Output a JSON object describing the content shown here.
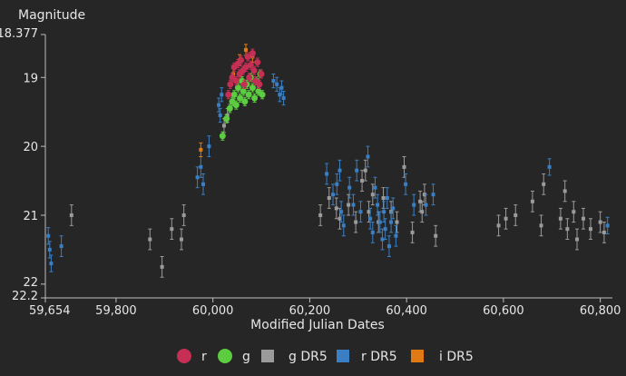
{
  "chart_data": {
    "type": "scatter",
    "title": "",
    "xlabel": "Modified Julian Dates",
    "ylabel": "Magnitude",
    "xlim": [
      59654,
      60825
    ],
    "ylim": [
      18.377,
      22.2
    ],
    "y_reversed": true,
    "grid": false,
    "legend_position": "bottom-center",
    "x_ticks": [
      59654,
      59800,
      60000,
      60200,
      60400,
      60600,
      60800
    ],
    "x_tick_labels": [
      "59,654",
      "59,800",
      "60,000",
      "60,200",
      "60,400",
      "60,600",
      "60,800"
    ],
    "y_ticks": [
      18.377,
      19,
      20,
      21,
      22,
      22.2
    ],
    "y_tick_labels": [
      "18.377",
      "19",
      "20",
      "21",
      "22",
      "22.2"
    ],
    "series": [
      {
        "name": "r",
        "marker": "circle",
        "color": "#c62f54",
        "points": [
          [
            60032,
            19.25,
            0.06
          ],
          [
            60036,
            19.1,
            0.06
          ],
          [
            60040,
            19.0,
            0.06
          ],
          [
            60044,
            18.85,
            0.06
          ],
          [
            60048,
            19.05,
            0.06
          ],
          [
            60052,
            18.8,
            0.06
          ],
          [
            60055,
            18.95,
            0.06
          ],
          [
            60058,
            18.75,
            0.06
          ],
          [
            60062,
            18.9,
            0.06
          ],
          [
            60065,
            19.1,
            0.06
          ],
          [
            60068,
            18.85,
            0.06
          ],
          [
            60072,
            18.7,
            0.06
          ],
          [
            60075,
            19.0,
            0.06
          ],
          [
            60078,
            18.82,
            0.06
          ],
          [
            60082,
            18.65,
            0.06
          ],
          [
            60085,
            18.9,
            0.06
          ],
          [
            60088,
            19.05,
            0.06
          ],
          [
            60092,
            18.78,
            0.06
          ],
          [
            60096,
            19.1,
            0.06
          ],
          [
            60100,
            18.95,
            0.06
          ]
        ]
      },
      {
        "name": "g",
        "marker": "circle",
        "color": "#5ccc40",
        "points": [
          [
            60020,
            19.85,
            0.06
          ],
          [
            60028,
            19.6,
            0.06
          ],
          [
            60035,
            19.45,
            0.06
          ],
          [
            60040,
            19.35,
            0.06
          ],
          [
            60044,
            19.25,
            0.06
          ],
          [
            60048,
            19.4,
            0.06
          ],
          [
            60052,
            19.15,
            0.06
          ],
          [
            60056,
            19.3,
            0.06
          ],
          [
            60060,
            19.05,
            0.06
          ],
          [
            60063,
            19.2,
            0.06
          ],
          [
            60066,
            19.35,
            0.06
          ],
          [
            60070,
            19.1,
            0.06
          ],
          [
            60074,
            19.25,
            0.06
          ],
          [
            60078,
            19.0,
            0.06
          ],
          [
            60082,
            19.15,
            0.06
          ],
          [
            60086,
            19.3,
            0.06
          ],
          [
            60090,
            19.05,
            0.06
          ],
          [
            60094,
            19.2,
            0.06
          ],
          [
            60098,
            18.95,
            0.06
          ],
          [
            60102,
            19.25,
            0.06
          ]
        ]
      },
      {
        "name": "g DR5",
        "marker": "square",
        "color": "#9b9b9b",
        "points": [
          [
            59708,
            21.0,
            0.15
          ],
          [
            59870,
            21.35,
            0.15
          ],
          [
            59895,
            21.75,
            0.15
          ],
          [
            59915,
            21.2,
            0.15
          ],
          [
            59935,
            21.35,
            0.15
          ],
          [
            59940,
            21.0,
            0.15
          ],
          [
            60023,
            19.7,
            0.1
          ],
          [
            60030,
            19.55,
            0.1
          ],
          [
            60222,
            21.0,
            0.15
          ],
          [
            60240,
            20.75,
            0.15
          ],
          [
            60255,
            20.9,
            0.15
          ],
          [
            60262,
            21.05,
            0.15
          ],
          [
            60280,
            20.85,
            0.15
          ],
          [
            60295,
            21.1,
            0.15
          ],
          [
            60308,
            20.5,
            0.15
          ],
          [
            60315,
            20.35,
            0.15
          ],
          [
            60322,
            20.95,
            0.15
          ],
          [
            60330,
            20.7,
            0.15
          ],
          [
            60342,
            21.1,
            0.15
          ],
          [
            60352,
            20.75,
            0.15
          ],
          [
            60368,
            20.95,
            0.15
          ],
          [
            60380,
            21.1,
            0.15
          ],
          [
            60395,
            20.3,
            0.15
          ],
          [
            60412,
            21.25,
            0.15
          ],
          [
            60428,
            20.8,
            0.15
          ],
          [
            60432,
            20.95,
            0.15
          ],
          [
            60437,
            20.7,
            0.15
          ],
          [
            60460,
            21.3,
            0.15
          ],
          [
            60590,
            21.15,
            0.15
          ],
          [
            60605,
            21.05,
            0.15
          ],
          [
            60625,
            21.0,
            0.15
          ],
          [
            60660,
            20.8,
            0.15
          ],
          [
            60678,
            21.15,
            0.15
          ],
          [
            60683,
            20.55,
            0.15
          ],
          [
            60718,
            21.05,
            0.15
          ],
          [
            60727,
            20.65,
            0.15
          ],
          [
            60732,
            21.2,
            0.15
          ],
          [
            60745,
            20.95,
            0.15
          ],
          [
            60752,
            21.35,
            0.15
          ],
          [
            60765,
            21.05,
            0.15
          ],
          [
            60780,
            21.2,
            0.15
          ],
          [
            60800,
            21.1,
            0.15
          ],
          [
            60808,
            21.25,
            0.15
          ]
        ]
      },
      {
        "name": "r DR5",
        "marker": "square",
        "color": "#3a7fc4",
        "points": [
          [
            59660,
            21.3,
            0.12
          ],
          [
            59663,
            21.5,
            0.12
          ],
          [
            59666,
            21.7,
            0.12
          ],
          [
            59687,
            21.45,
            0.15
          ],
          [
            59968,
            20.45,
            0.15
          ],
          [
            59975,
            20.3,
            0.15
          ],
          [
            59980,
            20.55,
            0.15
          ],
          [
            59992,
            20.0,
            0.15
          ],
          [
            60012,
            19.4,
            0.1
          ],
          [
            60015,
            19.55,
            0.1
          ],
          [
            60018,
            19.25,
            0.1
          ],
          [
            60125,
            19.05,
            0.1
          ],
          [
            60132,
            19.1,
            0.1
          ],
          [
            60138,
            19.25,
            0.1
          ],
          [
            60142,
            19.15,
            0.1
          ],
          [
            60146,
            19.3,
            0.1
          ],
          [
            60235,
            20.4,
            0.15
          ],
          [
            60248,
            20.7,
            0.15
          ],
          [
            60256,
            20.55,
            0.15
          ],
          [
            60262,
            20.35,
            0.15
          ],
          [
            60265,
            20.95,
            0.15
          ],
          [
            60270,
            21.15,
            0.15
          ],
          [
            60282,
            20.6,
            0.15
          ],
          [
            60290,
            20.85,
            0.15
          ],
          [
            60297,
            20.35,
            0.15
          ],
          [
            60305,
            20.95,
            0.15
          ],
          [
            60320,
            20.15,
            0.15
          ],
          [
            60325,
            21.05,
            0.15
          ],
          [
            60330,
            21.25,
            0.15
          ],
          [
            60335,
            20.6,
            0.15
          ],
          [
            60340,
            20.85,
            0.15
          ],
          [
            60345,
            21.1,
            0.15
          ],
          [
            60350,
            21.35,
            0.15
          ],
          [
            60353,
            20.95,
            0.15
          ],
          [
            60356,
            21.2,
            0.15
          ],
          [
            60360,
            20.75,
            0.15
          ],
          [
            60364,
            21.45,
            0.15
          ],
          [
            60368,
            21.1,
            0.15
          ],
          [
            60372,
            20.9,
            0.15
          ],
          [
            60378,
            21.3,
            0.15
          ],
          [
            60398,
            20.55,
            0.15
          ],
          [
            60415,
            20.85,
            0.15
          ],
          [
            60440,
            20.85,
            0.15
          ],
          [
            60455,
            20.7,
            0.15
          ],
          [
            60695,
            20.3,
            0.12
          ],
          [
            60815,
            21.15,
            0.12
          ]
        ]
      },
      {
        "name": "i DR5",
        "marker": "square",
        "color": "#e07b14",
        "points": [
          [
            59975,
            20.05,
            0.1
          ],
          [
            60042,
            18.95,
            0.08
          ],
          [
            60055,
            18.75,
            0.08
          ],
          [
            60068,
            18.6,
            0.08
          ],
          [
            60082,
            18.7,
            0.08
          ]
        ]
      }
    ],
    "legend": [
      {
        "label": "r",
        "marker": "circle",
        "color": "#c62f54"
      },
      {
        "label": "g",
        "marker": "circle",
        "color": "#5ccc40"
      },
      {
        "label": "g DR5",
        "marker": "square",
        "color": "#9b9b9b"
      },
      {
        "label": "r DR5",
        "marker": "square",
        "color": "#3a7fc4"
      },
      {
        "label": "i DR5",
        "marker": "square",
        "color": "#e07b14"
      }
    ]
  }
}
